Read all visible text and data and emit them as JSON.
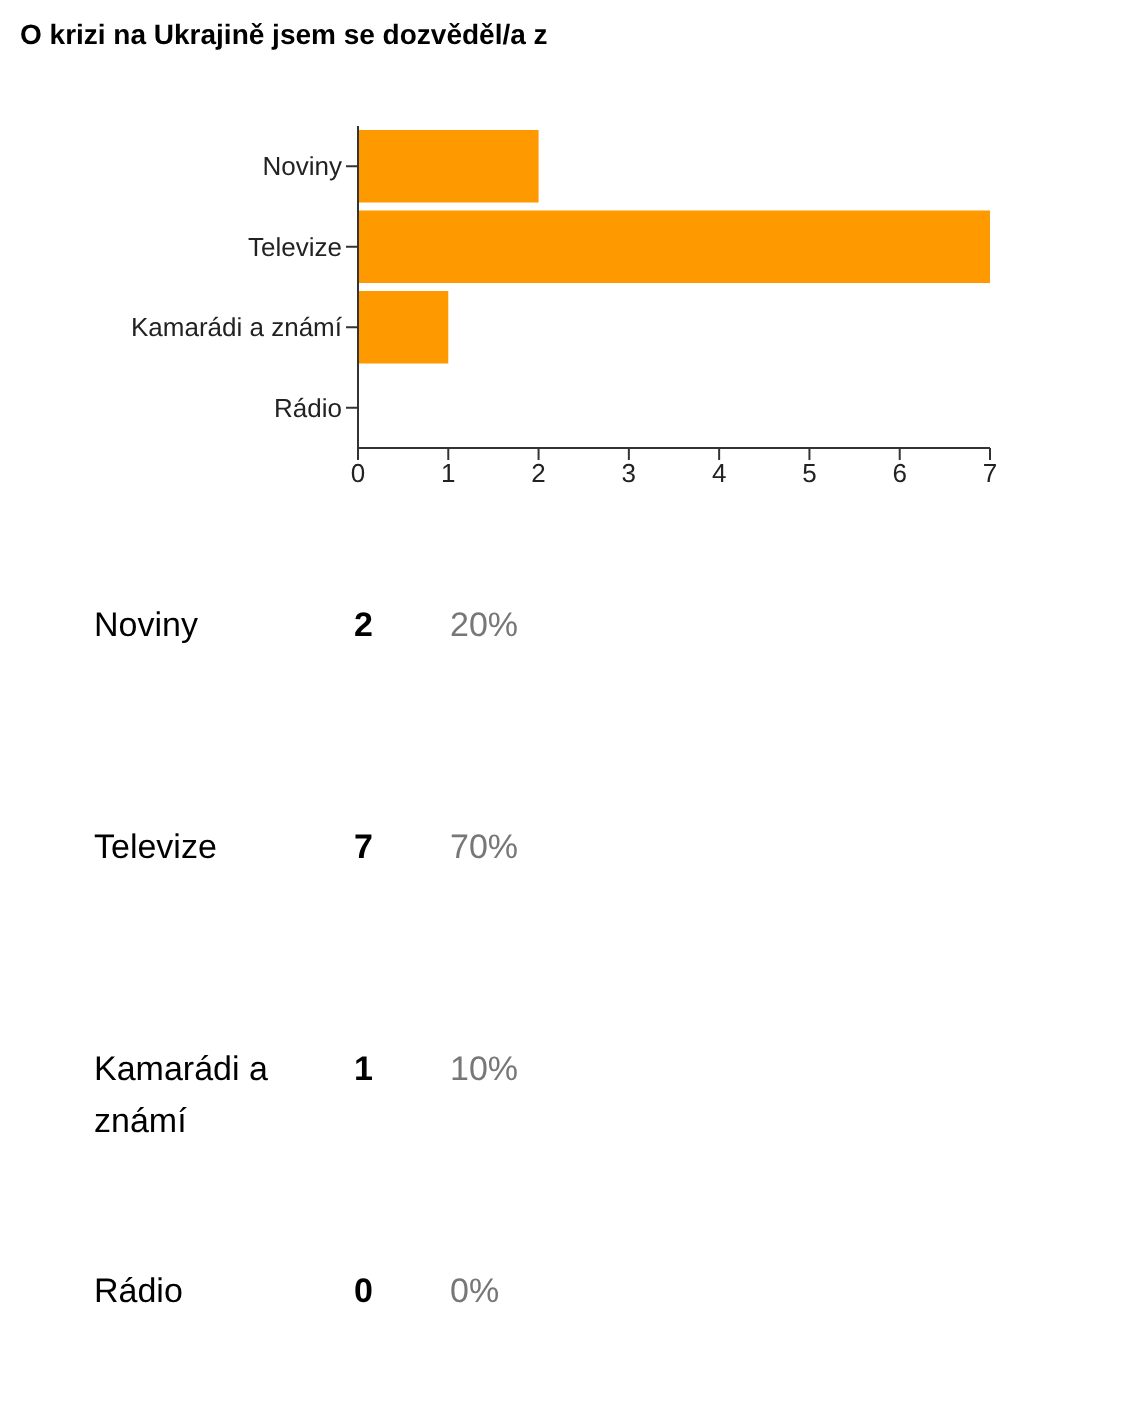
{
  "chart_data": {
    "type": "bar",
    "orientation": "horizontal",
    "title": "O krizi na Ukrajině jsem se dozvěděl/a z",
    "categories": [
      "Noviny",
      "Televize",
      "Kamarádi a známí",
      "Rádio"
    ],
    "values": [
      2,
      7,
      1,
      0
    ],
    "color": "#ff9900",
    "xlim": [
      0,
      7
    ],
    "xticks": [
      0,
      1,
      2,
      3,
      4,
      5,
      6,
      7
    ],
    "grid": false,
    "annotations": [
      "2",
      "20%",
      "7",
      "70%",
      "1",
      "10%",
      "0",
      "0%"
    ]
  }
}
